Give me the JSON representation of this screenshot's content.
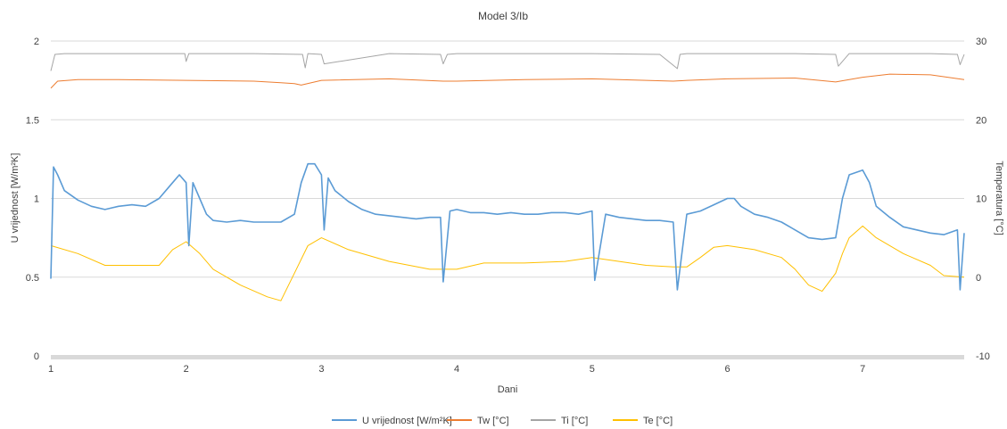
{
  "chart_data": {
    "type": "line",
    "title": "Model 3/Ib",
    "xlabel": "Dani",
    "ylabel": "U vrijednost [W/m²K]",
    "y2label": "Temperatura [°C]",
    "xlim": [
      1,
      7.75
    ],
    "ylim": [
      0,
      2
    ],
    "y2lim": [
      -10,
      30
    ],
    "x_ticks": [
      "1",
      "2",
      "3",
      "4",
      "5",
      "6",
      "7"
    ],
    "y_ticks": [
      "0",
      "0.5",
      "1",
      "1.5",
      "2"
    ],
    "y2_ticks": [
      "-10",
      "0",
      "10",
      "20",
      "30"
    ],
    "grid": true,
    "legend_position": "bottom",
    "series": [
      {
        "name": "U vrijednost [W/m²K]",
        "axis": "left",
        "color": "#5b9bd5",
        "x": [
          1.0,
          1.02,
          1.05,
          1.1,
          1.2,
          1.3,
          1.4,
          1.5,
          1.6,
          1.7,
          1.8,
          1.9,
          1.95,
          2.0,
          2.02,
          2.05,
          2.1,
          2.15,
          2.2,
          2.3,
          2.4,
          2.5,
          2.6,
          2.7,
          2.8,
          2.85,
          2.9,
          2.95,
          3.0,
          3.02,
          3.05,
          3.1,
          3.2,
          3.3,
          3.4,
          3.5,
          3.6,
          3.7,
          3.8,
          3.88,
          3.9,
          3.95,
          4.0,
          4.1,
          4.2,
          4.3,
          4.4,
          4.5,
          4.6,
          4.7,
          4.8,
          4.9,
          5.0,
          5.02,
          5.1,
          5.2,
          5.3,
          5.4,
          5.5,
          5.6,
          5.63,
          5.7,
          5.8,
          5.9,
          6.0,
          6.05,
          6.1,
          6.2,
          6.3,
          6.4,
          6.5,
          6.6,
          6.7,
          6.8,
          6.85,
          6.9,
          7.0,
          7.05,
          7.1,
          7.2,
          7.3,
          7.4,
          7.5,
          7.6,
          7.7,
          7.72,
          7.75
        ],
        "values": [
          0.49,
          1.2,
          1.15,
          1.05,
          0.99,
          0.95,
          0.93,
          0.95,
          0.96,
          0.95,
          1.0,
          1.1,
          1.15,
          1.1,
          0.7,
          1.1,
          1.0,
          0.9,
          0.86,
          0.85,
          0.86,
          0.85,
          0.85,
          0.85,
          0.9,
          1.1,
          1.22,
          1.22,
          1.15,
          0.8,
          1.13,
          1.05,
          0.98,
          0.93,
          0.9,
          0.89,
          0.88,
          0.87,
          0.88,
          0.88,
          0.47,
          0.92,
          0.93,
          0.91,
          0.91,
          0.9,
          0.91,
          0.9,
          0.9,
          0.91,
          0.91,
          0.9,
          0.92,
          0.48,
          0.9,
          0.88,
          0.87,
          0.86,
          0.86,
          0.85,
          0.42,
          0.9,
          0.92,
          0.96,
          1.0,
          1.0,
          0.95,
          0.9,
          0.88,
          0.85,
          0.8,
          0.75,
          0.74,
          0.75,
          1.0,
          1.15,
          1.18,
          1.1,
          0.95,
          0.88,
          0.82,
          0.8,
          0.78,
          0.77,
          0.8,
          0.42,
          0.78
        ]
      },
      {
        "name": "Tw [°C]",
        "axis": "right",
        "color": "#ed7d31",
        "x": [
          1.0,
          1.05,
          1.2,
          1.5,
          2.0,
          2.5,
          2.7,
          2.8,
          2.85,
          3.0,
          3.5,
          3.9,
          4.0,
          4.5,
          5.0,
          5.6,
          5.7,
          6.0,
          6.5,
          6.8,
          7.0,
          7.2,
          7.5,
          7.75
        ],
        "values": [
          24.0,
          24.9,
          25.1,
          25.1,
          25.0,
          24.9,
          24.7,
          24.6,
          24.4,
          25.0,
          25.2,
          24.9,
          24.9,
          25.1,
          25.2,
          24.9,
          25.0,
          25.2,
          25.3,
          24.8,
          25.4,
          25.8,
          25.7,
          25.1
        ]
      },
      {
        "name": "Ti [°C]",
        "axis": "right",
        "color": "#a5a5a5",
        "x": [
          1.0,
          1.03,
          1.1,
          1.5,
          1.99,
          2.0,
          2.02,
          2.5,
          2.86,
          2.88,
          2.9,
          3.0,
          3.02,
          3.5,
          3.88,
          3.9,
          3.93,
          4.0,
          4.5,
          5.0,
          5.5,
          5.63,
          5.65,
          5.7,
          6.0,
          6.5,
          6.8,
          6.82,
          6.9,
          7.0,
          7.5,
          7.7,
          7.72,
          7.75
        ],
        "values": [
          26.2,
          28.3,
          28.4,
          28.4,
          28.4,
          27.4,
          28.4,
          28.4,
          28.3,
          26.6,
          28.4,
          28.3,
          27.1,
          28.4,
          28.3,
          27.1,
          28.3,
          28.4,
          28.4,
          28.4,
          28.3,
          26.5,
          28.3,
          28.4,
          28.4,
          28.4,
          28.3,
          26.8,
          28.4,
          28.4,
          28.4,
          28.3,
          27.0,
          28.3
        ]
      },
      {
        "name": "Te [°C]",
        "axis": "right",
        "color": "#ffc000",
        "x": [
          1.0,
          1.2,
          1.4,
          1.6,
          1.8,
          1.9,
          2.0,
          2.1,
          2.2,
          2.4,
          2.6,
          2.7,
          2.8,
          2.9,
          3.0,
          3.2,
          3.5,
          3.8,
          4.0,
          4.2,
          4.5,
          4.8,
          5.0,
          5.2,
          5.4,
          5.6,
          5.7,
          5.8,
          5.9,
          6.0,
          6.2,
          6.4,
          6.5,
          6.6,
          6.7,
          6.8,
          6.85,
          6.9,
          7.0,
          7.1,
          7.3,
          7.5,
          7.6,
          7.75
        ],
        "values": [
          4.0,
          3.0,
          1.5,
          1.5,
          1.5,
          3.5,
          4.5,
          3.0,
          1.0,
          -1.0,
          -2.5,
          -3.0,
          0.5,
          4.0,
          5.0,
          3.5,
          2.0,
          1.0,
          1.0,
          1.8,
          1.8,
          2.0,
          2.5,
          2.0,
          1.5,
          1.3,
          1.3,
          2.5,
          3.8,
          4.0,
          3.5,
          2.5,
          1.0,
          -1.0,
          -1.8,
          0.5,
          3.0,
          5.0,
          6.5,
          5.0,
          3.0,
          1.5,
          0.2,
          0.0
        ]
      }
    ]
  }
}
